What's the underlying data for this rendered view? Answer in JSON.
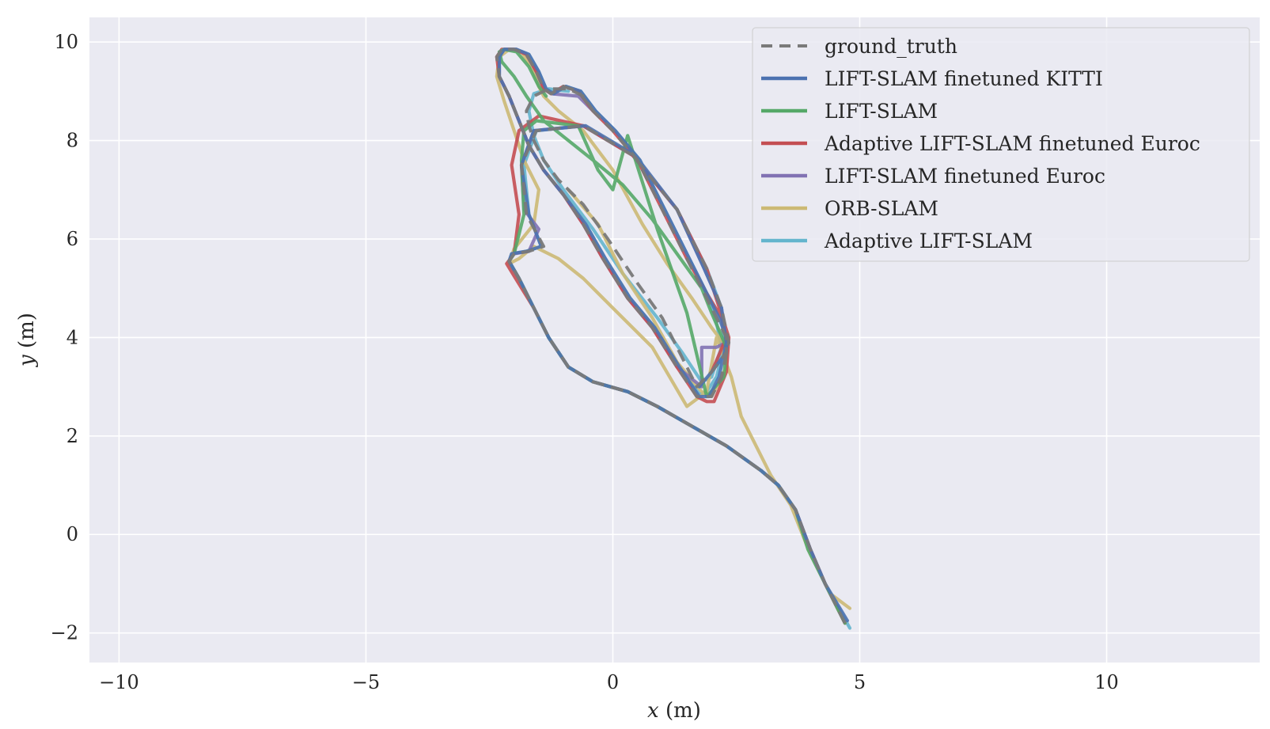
{
  "chart_data": {
    "type": "line",
    "title": "",
    "xlabel_var": "x",
    "xlabel_unit": " (m)",
    "ylabel_var": "y",
    "ylabel_unit": " (m)",
    "xlim": [
      -10.6,
      13.1
    ],
    "ylim": [
      -2.6,
      10.5
    ],
    "xticks": [
      -10,
      -5,
      0,
      5,
      10
    ],
    "xtick_labels": [
      "−10",
      "−5",
      "0",
      "5",
      "10"
    ],
    "yticks": [
      -2,
      0,
      2,
      4,
      6,
      8,
      10
    ],
    "ytick_labels": [
      "−2",
      "0",
      "2",
      "4",
      "6",
      "8",
      "10"
    ],
    "grid": true,
    "legend_position": "top-right",
    "colors": {
      "background": "#eaeaf2",
      "grid": "#ffffff",
      "ground_truth": "#7a7a7a",
      "kitti": "#4c72b0",
      "lift": "#55a868",
      "adaptive_euroc": "#c44e52",
      "euroc": "#8172b3",
      "orb": "#ccb974",
      "adaptive": "#64b5cd"
    },
    "series": [
      {
        "name": "ground_truth",
        "style": "dashed",
        "color": "#7a7a7a",
        "x": [
          4.7,
          4.3,
          4.0,
          3.7,
          3.35,
          3.0,
          2.3,
          1.6,
          0.9,
          0.3,
          -0.4,
          -0.9,
          -1.3,
          -1.6,
          -1.9,
          -2.1,
          -2.0,
          -1.7,
          -1.4,
          -1.75,
          -1.85,
          -1.55,
          -0.6,
          0.4,
          1.3,
          1.9,
          2.2,
          2.35,
          2.2,
          2.0,
          1.7,
          1.3,
          0.8,
          0.3,
          -0.2,
          -0.6,
          -1.0,
          -1.4,
          -1.7,
          -1.9,
          -2.1,
          -2.3,
          -2.35,
          -2.25,
          -2.0,
          -1.75,
          -1.55,
          -1.4,
          -1.25,
          -1.0,
          -0.7,
          -0.4,
          0.0,
          0.5,
          1.0,
          1.5,
          1.85,
          2.1,
          2.3,
          2.3,
          2.0,
          1.7,
          1.3,
          1.0,
          0.5,
          -0.1,
          -0.6,
          -1.1,
          -1.4,
          -1.6,
          -1.7,
          -1.75,
          -1.6,
          -1.3,
          -0.9,
          -0.6,
          -0.4
        ],
        "y": [
          -1.8,
          -1.0,
          -0.3,
          0.5,
          1.0,
          1.3,
          1.8,
          2.2,
          2.6,
          2.9,
          3.1,
          3.4,
          4.0,
          4.6,
          5.2,
          5.55,
          5.7,
          5.75,
          5.85,
          6.5,
          7.5,
          8.2,
          8.3,
          7.7,
          6.6,
          5.4,
          4.6,
          3.9,
          3.2,
          2.8,
          2.8,
          3.4,
          4.2,
          4.8,
          5.6,
          6.3,
          6.9,
          7.4,
          7.9,
          8.4,
          8.9,
          9.3,
          9.7,
          9.85,
          9.85,
          9.75,
          9.4,
          9.05,
          8.95,
          9.1,
          9.0,
          8.6,
          8.2,
          7.6,
          6.6,
          5.6,
          4.9,
          4.4,
          4.0,
          3.7,
          3.3,
          3.0,
          3.8,
          4.4,
          5.1,
          6.0,
          6.7,
          7.2,
          7.6,
          8.0,
          8.3,
          8.6,
          8.9,
          9.05,
          9.05,
          8.9,
          8.6
        ]
      },
      {
        "name": "LIFT-SLAM finetuned KITTI",
        "style": "solid",
        "color": "#4c72b0",
        "x": [
          4.75,
          4.3,
          4.0,
          3.7,
          3.35,
          3.0,
          2.3,
          1.6,
          0.9,
          0.3,
          -0.4,
          -0.9,
          -1.3,
          -1.6,
          -1.9,
          -2.1,
          -2.05,
          -1.75,
          -1.45,
          -1.7,
          -1.85,
          -1.6,
          -0.55,
          0.45,
          1.3,
          1.85,
          2.2,
          2.3,
          2.15,
          1.95,
          1.75,
          1.35,
          0.85,
          0.35,
          -0.15,
          -0.55,
          -1.0,
          -1.4,
          -1.7,
          -1.9,
          -2.1,
          -2.3,
          -2.3,
          -2.2,
          -1.95,
          -1.7,
          -1.5,
          -1.35,
          -1.2,
          -0.95,
          -0.65,
          -0.35,
          0.05,
          0.55,
          1.05,
          1.55,
          1.9,
          2.15,
          2.3,
          2.3,
          2.0,
          1.75
        ],
        "y": [
          -1.75,
          -1.0,
          -0.3,
          0.5,
          1.0,
          1.3,
          1.8,
          2.2,
          2.6,
          2.9,
          3.1,
          3.4,
          4.0,
          4.6,
          5.2,
          5.55,
          5.7,
          5.75,
          5.85,
          6.5,
          7.5,
          8.2,
          8.3,
          7.7,
          6.6,
          5.4,
          4.6,
          3.9,
          3.2,
          2.8,
          2.8,
          3.4,
          4.2,
          4.8,
          5.6,
          6.3,
          6.9,
          7.4,
          7.9,
          8.4,
          8.9,
          9.3,
          9.7,
          9.85,
          9.85,
          9.75,
          9.4,
          9.05,
          8.95,
          9.1,
          9.0,
          8.6,
          8.2,
          7.6,
          6.6,
          5.6,
          4.9,
          4.4,
          4.0,
          3.7,
          3.3,
          3.0
        ]
      },
      {
        "name": "LIFT-SLAM",
        "style": "solid",
        "color": "#55a868",
        "x": [
          4.7,
          4.3,
          3.95,
          3.7,
          3.35,
          3.0,
          2.3,
          1.6,
          0.9,
          0.3,
          -0.4,
          -0.9,
          -1.3,
          -1.6,
          -1.9,
          -2.1,
          -2.0,
          -1.8,
          -1.85,
          -1.8,
          -1.55,
          -0.7,
          -0.3,
          0.0,
          0.3,
          0.9,
          1.5,
          1.9,
          2.25,
          2.3,
          2.0,
          1.8,
          1.3,
          0.8,
          0.2,
          -0.4,
          -0.9,
          -1.4,
          -1.75,
          -2.0,
          -2.25,
          -2.3,
          -2.2,
          -1.95,
          -1.7,
          -1.5,
          -1.35
        ],
        "y": [
          -1.8,
          -1.0,
          -0.3,
          0.5,
          1.0,
          1.3,
          1.8,
          2.2,
          2.6,
          2.9,
          3.1,
          3.4,
          4.0,
          4.6,
          5.2,
          5.55,
          5.7,
          6.5,
          7.6,
          8.2,
          8.4,
          8.3,
          7.4,
          7.0,
          8.1,
          6.2,
          4.5,
          2.8,
          3.2,
          3.8,
          4.5,
          5.0,
          5.7,
          6.4,
          7.1,
          7.6,
          8.0,
          8.4,
          8.9,
          9.3,
          9.6,
          9.8,
          9.85,
          9.8,
          9.5,
          9.1,
          8.9
        ]
      },
      {
        "name": "Adaptive LIFT-SLAM finetuned Euroc",
        "style": "solid",
        "color": "#c44e52",
        "x": [
          4.7,
          4.3,
          4.0,
          3.7,
          3.35,
          3.0,
          2.3,
          1.6,
          0.9,
          0.3,
          -0.4,
          -0.9,
          -1.3,
          -1.6,
          -2.0,
          -2.15,
          -2.0,
          -1.9,
          -2.05,
          -1.9,
          -1.5,
          -0.6,
          0.4,
          1.3,
          1.9,
          2.35,
          2.3,
          2.05,
          1.9,
          1.7,
          1.3,
          0.8,
          0.3,
          -0.2,
          -0.6,
          -1.0,
          -1.4,
          -1.7,
          -1.9,
          -2.1,
          -2.3,
          -2.35,
          -2.25,
          -2.0,
          -1.75,
          -1.55,
          -1.4,
          -1.25,
          -1.0,
          -0.7,
          -0.4,
          0.0,
          0.5,
          1.0,
          1.5,
          1.9,
          2.2,
          2.3,
          2.0
        ],
        "y": [
          -1.8,
          -1.0,
          -0.3,
          0.5,
          1.0,
          1.3,
          1.8,
          2.2,
          2.6,
          2.9,
          3.1,
          3.4,
          4.0,
          4.6,
          5.25,
          5.5,
          5.7,
          6.5,
          7.5,
          8.2,
          8.5,
          8.3,
          7.7,
          6.6,
          5.4,
          4.0,
          3.3,
          2.7,
          2.7,
          2.8,
          3.4,
          4.2,
          4.8,
          5.6,
          6.3,
          6.9,
          7.4,
          7.9,
          8.4,
          8.9,
          9.3,
          9.7,
          9.85,
          9.85,
          9.75,
          9.4,
          9.05,
          8.95,
          9.1,
          9.0,
          8.6,
          8.2,
          7.6,
          6.6,
          5.6,
          4.9,
          4.4,
          4.0,
          3.3
        ]
      },
      {
        "name": "LIFT-SLAM finetuned Euroc",
        "style": "solid",
        "color": "#8172b3",
        "x": [
          4.7,
          4.3,
          4.0,
          3.7,
          3.35,
          3.0,
          2.3,
          1.6,
          0.9,
          0.3,
          -0.4,
          -0.9,
          -1.3,
          -1.6,
          -1.9,
          -2.1,
          -2.0,
          -1.7,
          -1.5,
          -1.8,
          -1.85,
          -1.6,
          -0.6,
          0.4,
          1.3,
          1.85,
          2.2,
          2.3,
          2.1,
          1.8,
          1.8,
          1.3,
          0.8,
          0.3,
          -0.2,
          -0.6,
          -1.0,
          -1.4,
          -1.7,
          -1.9,
          -2.1,
          -2.3,
          -2.3,
          -2.2,
          -1.95,
          -1.75,
          -1.55,
          -1.4,
          -1.25,
          -0.7,
          -0.4
        ],
        "y": [
          -1.8,
          -1.0,
          -0.3,
          0.5,
          1.0,
          1.3,
          1.8,
          2.2,
          2.6,
          2.9,
          3.1,
          3.4,
          4.0,
          4.6,
          5.2,
          5.55,
          5.7,
          5.75,
          6.2,
          6.6,
          7.5,
          8.2,
          8.3,
          7.7,
          6.6,
          5.4,
          4.6,
          3.9,
          3.8,
          3.8,
          3.0,
          3.4,
          4.2,
          4.8,
          5.6,
          6.3,
          6.9,
          7.4,
          7.9,
          8.4,
          8.9,
          9.3,
          9.7,
          9.85,
          9.85,
          9.75,
          9.4,
          9.05,
          8.95,
          8.9,
          8.6
        ]
      },
      {
        "name": "ORB-SLAM",
        "style": "solid",
        "color": "#ccb974",
        "x": [
          4.8,
          4.4,
          4.0,
          3.6,
          3.2,
          2.6,
          2.4,
          2.1,
          1.9,
          1.5,
          0.8,
          0.0,
          -0.6,
          -1.1,
          -1.4,
          -1.6,
          -1.9,
          -2.1,
          -2.0,
          -1.6,
          -1.5,
          -1.8,
          -2.0,
          -2.2,
          -2.35,
          -2.3,
          -2.1,
          -1.85,
          -1.65,
          -1.5,
          -1.4,
          -1.1,
          -0.6,
          0.0,
          0.6,
          1.1,
          1.6,
          2.0,
          2.3,
          2.3,
          2.0,
          1.8,
          1.3,
          0.8,
          0.2,
          -0.3,
          -0.9
        ],
        "y": [
          -1.5,
          -1.2,
          -0.4,
          0.6,
          1.2,
          2.4,
          3.2,
          4.0,
          2.9,
          2.6,
          3.8,
          4.6,
          5.2,
          5.6,
          5.75,
          5.85,
          5.6,
          5.5,
          5.8,
          6.3,
          7.0,
          7.6,
          8.2,
          8.8,
          9.3,
          9.7,
          9.85,
          9.8,
          9.5,
          9.1,
          8.9,
          8.6,
          8.2,
          7.4,
          6.3,
          5.5,
          4.8,
          4.2,
          3.8,
          3.4,
          2.8,
          2.9,
          3.5,
          4.4,
          5.3,
          6.3,
          7.0
        ]
      },
      {
        "name": "Adaptive LIFT-SLAM",
        "style": "solid",
        "color": "#64b5cd",
        "x": [
          4.8,
          4.3,
          4.0,
          3.7,
          3.35,
          3.0,
          2.3,
          1.6,
          0.9,
          0.3,
          -0.4,
          -0.9,
          -1.3,
          -1.6,
          -1.9,
          -2.1,
          -2.05,
          -1.75,
          -1.45,
          -1.7,
          -1.8,
          -1.55,
          -0.6,
          0.4,
          1.3,
          1.9,
          2.2,
          2.25,
          2.1,
          1.9,
          1.75,
          1.35,
          0.85,
          0.35,
          -0.15,
          -0.55,
          -1.0,
          -1.4,
          -1.7,
          -1.9,
          -2.1,
          -2.3,
          -2.3,
          -2.2,
          -1.95,
          -1.7,
          -1.5,
          -1.35,
          -1.2,
          -0.95,
          -0.65,
          -0.35,
          0.05,
          0.55,
          1.05,
          1.55,
          1.9,
          2.1,
          2.2,
          2.0,
          1.8,
          1.4,
          0.9,
          0.2,
          -0.4,
          -1.0,
          -1.4,
          -1.6,
          -1.7,
          -1.6,
          -1.3,
          -0.9
        ],
        "y": [
          -1.9,
          -1.0,
          -0.3,
          0.5,
          1.0,
          1.3,
          1.8,
          2.2,
          2.6,
          2.9,
          3.1,
          3.4,
          4.0,
          4.6,
          5.2,
          5.55,
          5.7,
          5.75,
          5.85,
          6.5,
          7.5,
          8.2,
          8.3,
          7.7,
          6.6,
          5.4,
          4.6,
          3.8,
          3.2,
          2.9,
          2.85,
          3.4,
          4.2,
          4.8,
          5.6,
          6.3,
          6.9,
          7.4,
          7.9,
          8.4,
          8.9,
          9.3,
          9.7,
          9.85,
          9.85,
          9.75,
          9.4,
          9.05,
          8.95,
          9.1,
          9.0,
          8.6,
          8.2,
          7.6,
          6.6,
          5.6,
          4.9,
          4.3,
          3.8,
          3.2,
          3.1,
          3.7,
          4.4,
          5.3,
          6.2,
          7.0,
          7.6,
          8.1,
          8.6,
          8.95,
          9.05,
          9.0
        ]
      }
    ]
  }
}
